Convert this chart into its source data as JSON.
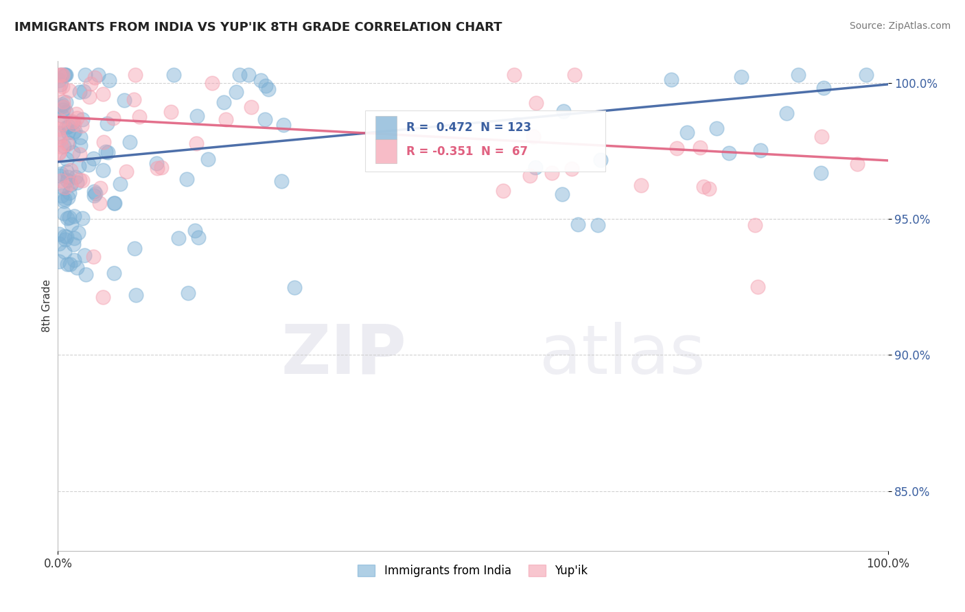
{
  "title": "IMMIGRANTS FROM INDIA VS YUP'IK 8TH GRADE CORRELATION CHART",
  "source": "Source: ZipAtlas.com",
  "ylabel": "8th Grade",
  "xlim": [
    0.0,
    1.0
  ],
  "ylim": [
    0.828,
    1.008
  ],
  "y_ticks": [
    0.85,
    0.9,
    0.95,
    1.0
  ],
  "y_tick_labels": [
    "85.0%",
    "90.0%",
    "95.0%",
    "100.0%"
  ],
  "blue_R": 0.472,
  "blue_N": 123,
  "pink_R": -0.351,
  "pink_N": 67,
  "blue_color": "#7BAFD4",
  "pink_color": "#F4A0B0",
  "blue_line_color": "#3A5FA0",
  "pink_line_color": "#E06080",
  "grid_color": "#CCCCCC",
  "background_color": "#FFFFFF",
  "legend_label_blue": "Immigrants from India",
  "legend_label_pink": "Yup'ik",
  "blue_trend_x0": 0.0,
  "blue_trend_x1": 1.0,
  "blue_trend_y0": 0.971,
  "blue_trend_y1": 0.9995,
  "pink_trend_x0": 0.0,
  "pink_trend_x1": 1.0,
  "pink_trend_y0": 0.9875,
  "pink_trend_y1": 0.9715
}
